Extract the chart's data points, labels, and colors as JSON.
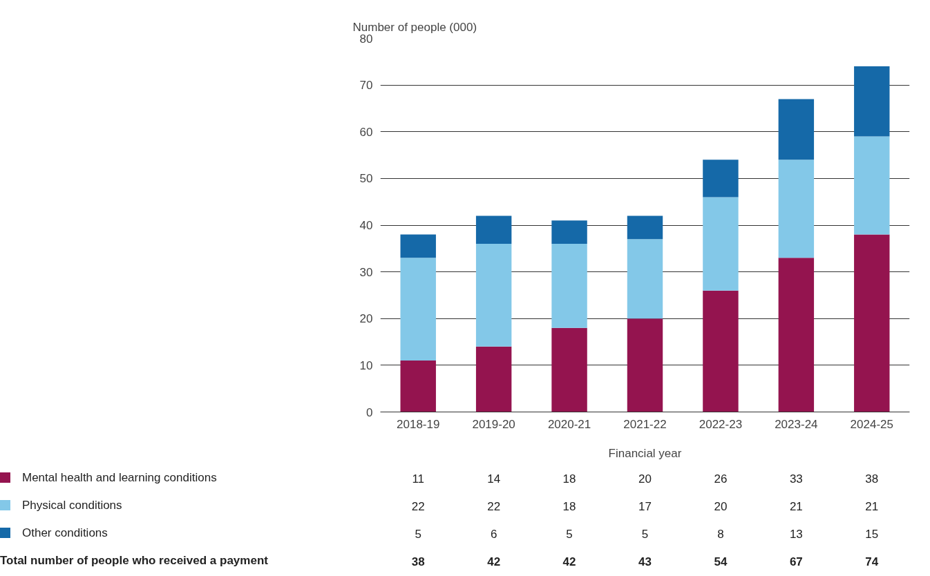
{
  "chart_data": {
    "type": "bar",
    "stacked": true,
    "ylabel": "Number of people (000)",
    "xlabel": "Financial year",
    "categories": [
      "2018-19",
      "2019-20",
      "2020-21",
      "2021-22",
      "2022-23",
      "2023-24",
      "2024-25"
    ],
    "series": [
      {
        "name": "Mental health and learning conditions",
        "color": "#94144f",
        "values": [
          11,
          14,
          18,
          20,
          26,
          33,
          38
        ]
      },
      {
        "name": "Physical conditions",
        "color": "#83c8e8",
        "values": [
          22,
          22,
          18,
          17,
          20,
          21,
          21
        ]
      },
      {
        "name": "Other conditions",
        "color": "#1569a8",
        "values": [
          5,
          6,
          5,
          5,
          8,
          13,
          15
        ]
      }
    ],
    "ylim": [
      0,
      80
    ],
    "yticks": [
      0,
      10,
      20,
      30,
      40,
      50,
      60,
      70,
      80
    ],
    "grid": "y",
    "legend": "bottom left",
    "data_labels": true,
    "annotations": [
      "Total number of people who received a payment",
      "38",
      "42",
      "42",
      "43",
      "54",
      "67",
      "74"
    ]
  }
}
